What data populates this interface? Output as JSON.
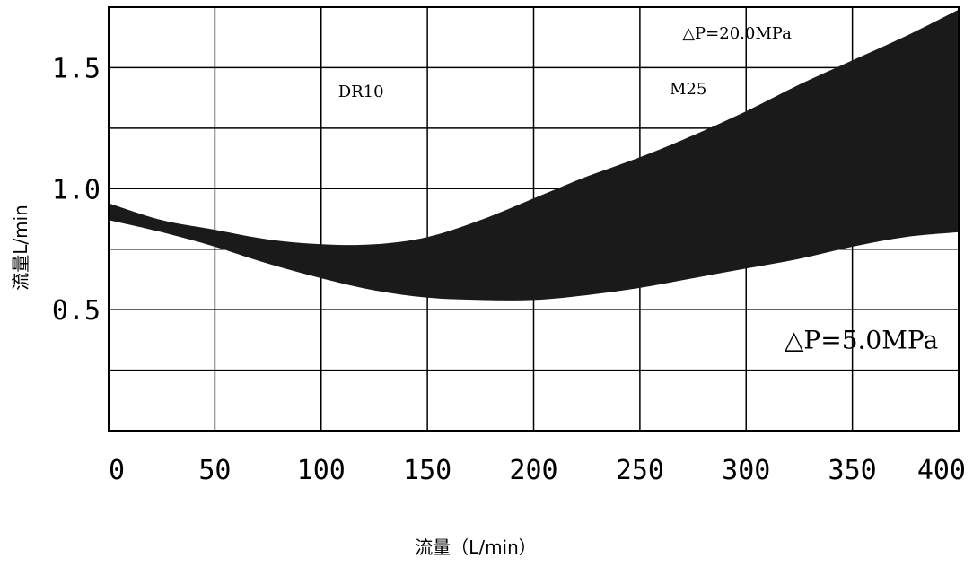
{
  "chart_data": {
    "type": "area",
    "xlabel": "流量（L/min）",
    "ylabel": "流量L/min",
    "xlim": [
      0,
      400
    ],
    "ylim": [
      0,
      1.75
    ],
    "grid": true,
    "x_ticks": [
      "0",
      "50",
      "100",
      "150",
      "200",
      "250",
      "300",
      "350",
      "400"
    ],
    "y_ticks": [
      {
        "value": 0.5,
        "label": "0.5"
      },
      {
        "value": 1.0,
        "label": "1.0"
      },
      {
        "value": 1.5,
        "label": "1.5"
      }
    ],
    "band": {
      "x": [
        0,
        25,
        50,
        75,
        100,
        125,
        150,
        175,
        200,
        225,
        250,
        275,
        300,
        325,
        350,
        375,
        400
      ],
      "upper": [
        0.94,
        0.87,
        0.83,
        0.79,
        0.77,
        0.77,
        0.8,
        0.87,
        0.96,
        1.05,
        1.13,
        1.22,
        1.32,
        1.43,
        1.53,
        1.63,
        1.74
      ],
      "lower": [
        0.87,
        0.82,
        0.76,
        0.69,
        0.63,
        0.58,
        0.55,
        0.54,
        0.54,
        0.56,
        0.59,
        0.63,
        0.67,
        0.71,
        0.76,
        0.8,
        0.82
      ],
      "color": "#1a1a1a"
    },
    "annotations": [
      {
        "text": "DR10",
        "x": 108,
        "y": 1.38,
        "size": 18
      },
      {
        "text": "M25",
        "x": 264,
        "y": 1.39,
        "size": 18
      },
      {
        "text": "△P=20.0MPa",
        "x": 270,
        "y": 1.62,
        "size": 18
      },
      {
        "text": "△P=5.0MPa",
        "x": 318,
        "y": 0.34,
        "size": 28
      }
    ]
  }
}
